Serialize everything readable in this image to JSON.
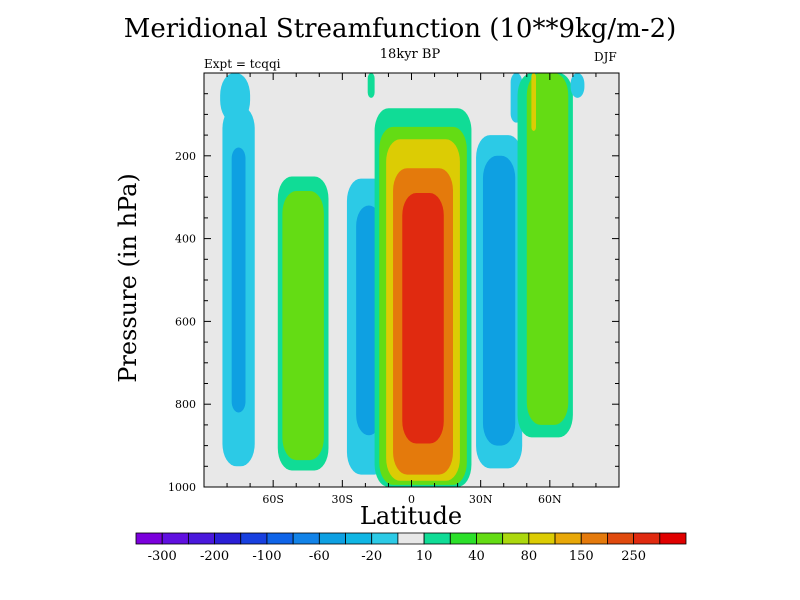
{
  "chart_data": {
    "type": "contour",
    "title": "Meridional Streamfunction (10**9kg/m-2)",
    "subtitle": "18kyr BP",
    "left_annotation": "Expt = tcqqi",
    "right_annotation": "DJF",
    "xlabel": "Latitude",
    "ylabel": "Pressure (in hPa)",
    "xlim": [
      -90,
      90
    ],
    "ylim": [
      1000,
      0
    ],
    "x_ticks": [
      {
        "value": -60,
        "label": "60S"
      },
      {
        "value": -30,
        "label": "30S"
      },
      {
        "value": 0,
        "label": "0"
      },
      {
        "value": 30,
        "label": "30N"
      },
      {
        "value": 60,
        "label": "60N"
      }
    ],
    "y_ticks": [
      {
        "value": 200,
        "label": "200"
      },
      {
        "value": 400,
        "label": "400"
      },
      {
        "value": 600,
        "label": "600"
      },
      {
        "value": 800,
        "label": "800"
      },
      {
        "value": 1000,
        "label": "1000"
      }
    ],
    "background_color": "#e8e8e8",
    "levels_labels": [
      "-300",
      "-200",
      "-100",
      "-60",
      "-20",
      "10",
      "40",
      "80",
      "150",
      "250"
    ],
    "colorbar_colors": [
      "#7b00dc",
      "#6010e0",
      "#4a18dc",
      "#2a1fd6",
      "#1840e0",
      "#0f64e8",
      "#1283e8",
      "#0ea0e2",
      "#10b6e4",
      "#2ccae6",
      "#e8e8e8",
      "#10dc96",
      "#2ce02a",
      "#64dc14",
      "#acd80e",
      "#dccc04",
      "#e8a808",
      "#e47a0c",
      "#e04a0e",
      "#e02a10",
      "#e00000"
    ],
    "cells": [
      {
        "name": "cell-60s-top",
        "value": -20,
        "x0": -83,
        "x1": -70,
        "p0": 0,
        "p1": 120
      },
      {
        "name": "cell-60s-outer",
        "value": -20,
        "x0": -82,
        "x1": -68,
        "p0": 80,
        "p1": 950
      },
      {
        "name": "cell-60s-inner",
        "value": -60,
        "x0": -78,
        "x1": -72,
        "p0": 180,
        "p1": 820
      },
      {
        "name": "cell-50s-outer",
        "value": 10,
        "x0": -58,
        "x1": -36,
        "p0": 250,
        "p1": 960
      },
      {
        "name": "cell-50s-inner",
        "value": 40,
        "x0": -56,
        "x1": -38,
        "p0": 285,
        "p1": 935
      },
      {
        "name": "cell-30s-outer",
        "value": -20,
        "x0": -28,
        "x1": -10,
        "p0": 255,
        "p1": 970
      },
      {
        "name": "cell-30s-inner",
        "value": -60,
        "x0": -24,
        "x1": -13,
        "p0": 320,
        "p1": 875
      },
      {
        "name": "cell-20s-strip",
        "value": 10,
        "x0": -19,
        "x1": -16,
        "p0": 0,
        "p1": 60
      },
      {
        "name": "cell-hadley-10",
        "value": 10,
        "x0": -16,
        "x1": 26,
        "p0": 85,
        "p1": 1000
      },
      {
        "name": "cell-hadley-40",
        "value": 40,
        "x0": -14,
        "x1": 24,
        "p0": 130,
        "p1": 995
      },
      {
        "name": "cell-hadley-80",
        "value": 80,
        "x0": -11,
        "x1": 21,
        "p0": 160,
        "p1": 985
      },
      {
        "name": "cell-hadley-150",
        "value": 150,
        "x0": -8,
        "x1": 18,
        "p0": 230,
        "p1": 970
      },
      {
        "name": "cell-hadley-250",
        "value": 250,
        "x0": -4,
        "x1": 14,
        "p0": 290,
        "p1": 895
      },
      {
        "name": "cell-40n-outer",
        "value": -20,
        "x0": 28,
        "x1": 48,
        "p0": 150,
        "p1": 955
      },
      {
        "name": "cell-40n-inner",
        "value": -60,
        "x0": 31,
        "x1": 45,
        "p0": 200,
        "p1": 900
      },
      {
        "name": "cell-50n-neg",
        "value": -20,
        "x0": 43,
        "x1": 48,
        "p0": 0,
        "p1": 120
      },
      {
        "name": "cell-55n-outer",
        "value": 10,
        "x0": 46,
        "x1": 70,
        "p0": 0,
        "p1": 880
      },
      {
        "name": "cell-55n-inner",
        "value": 40,
        "x0": 50,
        "x1": 68,
        "p0": 0,
        "p1": 850
      },
      {
        "name": "cell-55n-core",
        "value": 80,
        "x0": 52,
        "x1": 54,
        "p0": 0,
        "p1": 140
      },
      {
        "name": "cell-75n-neg",
        "value": -20,
        "x0": 69,
        "x1": 75,
        "p0": 0,
        "p1": 60
      }
    ]
  }
}
